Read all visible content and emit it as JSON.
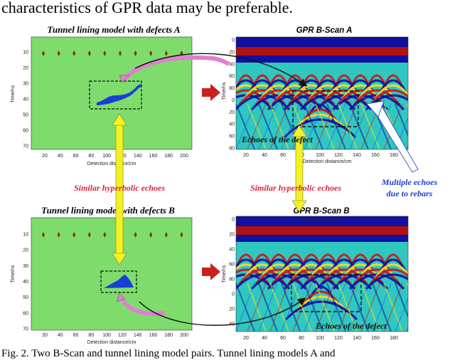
{
  "caption_top": "characteristics of GPR data may be preferable.",
  "caption_bottom": "Fig. 2.  Two B-Scan and tunnel lining model pairs. Tunnel lining models A and",
  "panels": {
    "model_a_title": "Tunnel lining model with defects A",
    "scan_a_title": "GPR B-Scan A",
    "model_b_title": "Tunnel lining model with defects B",
    "scan_b_title": "GPR B-Scan B"
  },
  "axes": {
    "model_ylabel": "Time/ns",
    "scan_ylabel": "Time/ns",
    "xlabel": "Detection distance/cm",
    "model_yticks": [
      "10",
      "20",
      "30",
      "40",
      "50",
      "60",
      "70"
    ],
    "model_xticks": [
      "20",
      "40",
      "60",
      "80",
      "100",
      "120",
      "140",
      "160",
      "180",
      "200"
    ],
    "scan_a_yticks": [
      "0",
      "20",
      "40",
      "60",
      "80",
      "0",
      "20",
      "40",
      "60",
      "80"
    ],
    "scan_a_xticks": [
      "20",
      "40",
      "60",
      "80",
      "100",
      "120",
      "140",
      "160",
      "180"
    ],
    "scan_b_yticks": [
      "0",
      "20",
      "40",
      "60",
      "80",
      "0",
      "20",
      "40"
    ],
    "scan_b_xticks": [
      "20",
      "40",
      "60",
      "80",
      "100",
      "120",
      "140",
      "160",
      "180"
    ]
  },
  "annotations": {
    "similar_left": "Similar hyperbolic echoes",
    "similar_right": "Similar hyperbolic echoes",
    "echoes_defect_a": "Echoes of the defect",
    "echoes_defect_b": "Echoes of the defect",
    "multiple_echoes_line1": "Multiple echoes",
    "multiple_echoes_line2": "due to rebars"
  },
  "colors": {
    "model_bg": "#7ddc6b",
    "rebar": "#8b2a1a",
    "defect": "#1a3fd6",
    "highlight_arrow": "#e07fd0",
    "similar_arrow": "#f4f21c",
    "red_arrow": "#c8201c",
    "similar_text": "#e0203a",
    "multiple_text": "#2040c8",
    "scan_top_band": "#1010a0",
    "scan_red_band": "#b01010",
    "scan_bg": "#2ec8c0"
  }
}
